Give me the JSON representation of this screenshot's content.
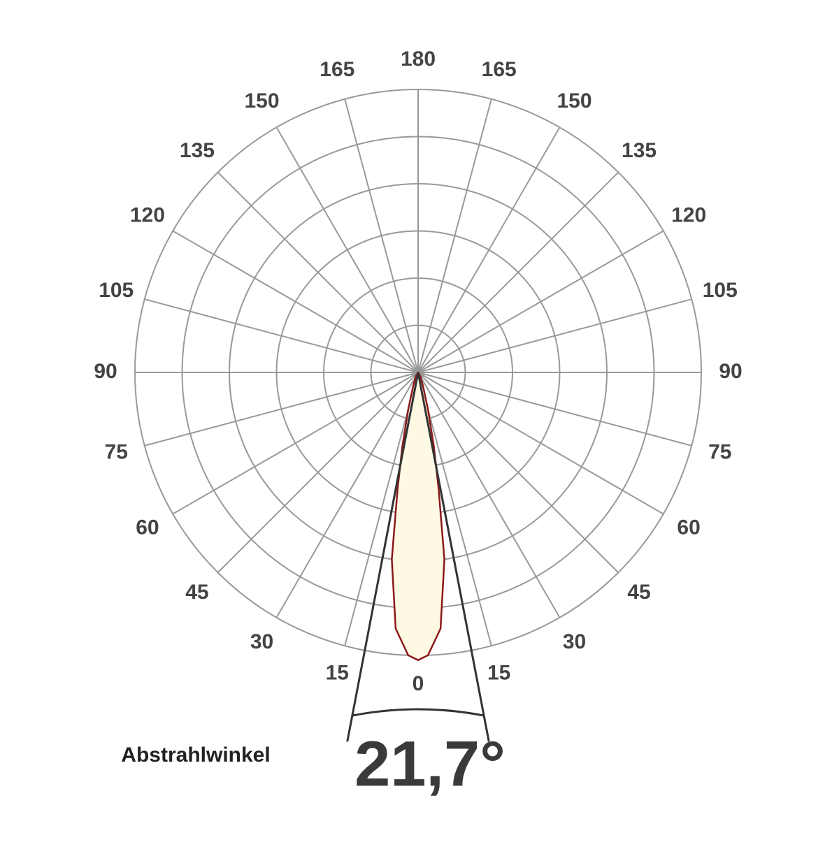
{
  "chart_data": {
    "type": "polar",
    "thetaticks": [
      0,
      15,
      30,
      45,
      60,
      75,
      90,
      105,
      120,
      135,
      150,
      165,
      180
    ],
    "rlim": [
      0,
      6
    ],
    "rings": 6,
    "x": [
      -30,
      -20,
      -15,
      -12,
      -10,
      -8,
      -5,
      -2,
      0,
      2,
      5,
      8,
      10,
      12,
      15,
      20,
      30
    ],
    "series": [
      {
        "color": "#8b1a1a",
        "fill": "#fdf9e3",
        "values": [
          0.1,
          0.3,
          0.8,
          1.6,
          2.5,
          4.0,
          5.45,
          6.0,
          6.1,
          6.0,
          5.45,
          4.0,
          2.5,
          1.6,
          0.8,
          0.3,
          0.1
        ]
      }
    ],
    "beam_angle": {
      "value": 21.7,
      "label": "21,7°"
    },
    "beam_title": "Abstrahlwinkel"
  }
}
